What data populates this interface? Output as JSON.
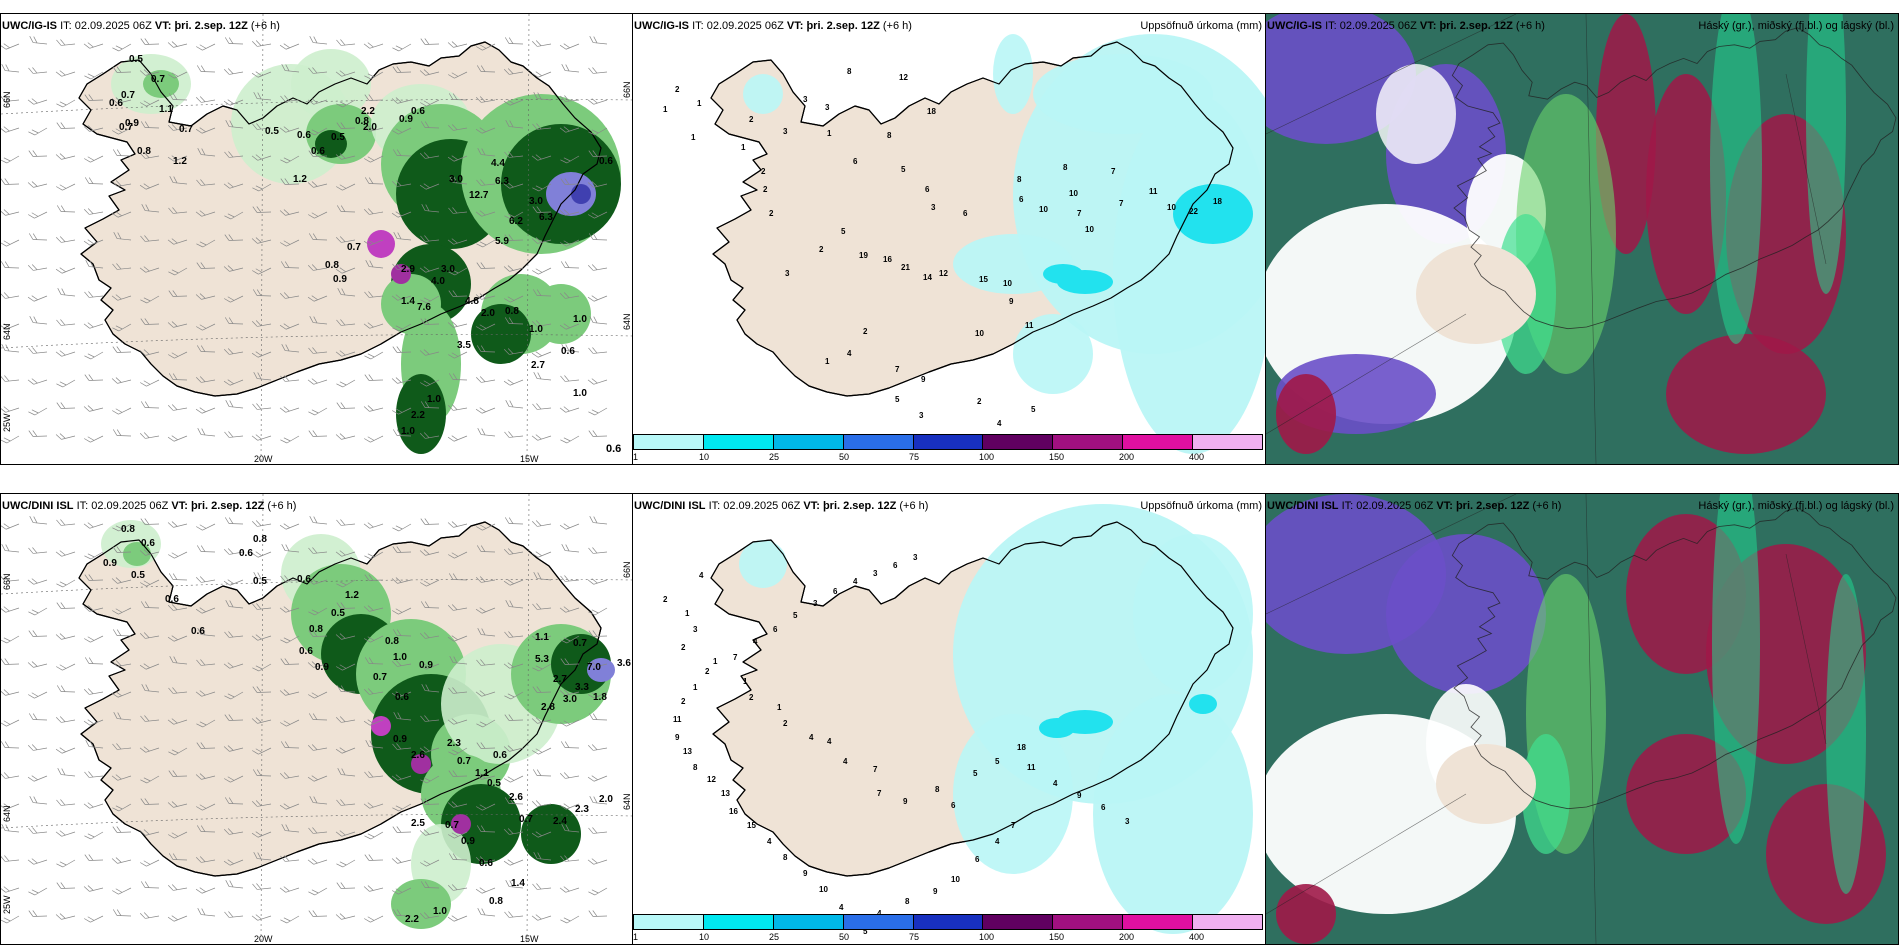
{
  "panels": [
    {
      "model": "UWC/IG-IS",
      "it_label": "IT:",
      "it_value": "02.09.2025 06Z",
      "vt_label": "VT:",
      "vt_value": "þri. 2.sep. 12Z",
      "lead": "(+6 h)",
      "title_right": "",
      "grid_labels": {
        "lat_top": "66N",
        "lat_bottom": "64N",
        "lon_left": "20W",
        "lon_right": "15W",
        "corner": "25W"
      },
      "values": [
        "0.5",
        "0.7",
        "0.6",
        "0.7",
        "0.9",
        "1.1",
        "0.7",
        "0.8",
        "0.7",
        "1.2",
        "0.5",
        "0.6",
        "0.6",
        "1.2",
        "0.5",
        "0.8",
        "2.2",
        "2.0",
        "0.9",
        "0.6",
        "4.4",
        "6.3",
        "3.0",
        "12.7",
        "3.0",
        "6.2",
        "6.3",
        "5.9",
        "3.0",
        "0.7",
        "0.8",
        "0.9",
        "2.9",
        "4.0",
        "1.4",
        "7.6",
        "4.8",
        "2.0",
        "0.8",
        "3.5",
        "1.0",
        "2.7",
        "1.0",
        "0.6",
        "1.0",
        "1.0",
        "2.2",
        "1.0",
        "0.6"
      ]
    },
    {
      "model": "UWC/IG-IS",
      "it_label": "IT:",
      "it_value": "02.09.2025 06Z",
      "vt_label": "VT:",
      "vt_value": "þri. 2.sep. 12Z",
      "lead": "(+6 h)",
      "title_right": "Uppsöfnuð úrkoma (mm)",
      "values": [
        "2",
        "1",
        "1",
        "1",
        "2",
        "1",
        "2",
        "2",
        "2",
        "3",
        "3",
        "3",
        "8",
        "12",
        "1",
        "6",
        "8",
        "18",
        "5",
        "6",
        "3",
        "6",
        "8",
        "6",
        "10",
        "10",
        "7",
        "10",
        "7",
        "8",
        "7",
        "11",
        "10",
        "22",
        "18",
        "2",
        "5",
        "3",
        "19",
        "16",
        "21",
        "14",
        "12",
        "15",
        "10",
        "9",
        "11",
        "10",
        "2",
        "1",
        "4",
        "7",
        "9",
        "5",
        "3",
        "2",
        "4",
        "5"
      ]
    },
    {
      "model": "UWC/IG-IS",
      "it_label": "IT:",
      "it_value": "02.09.2025 06Z",
      "vt_label": "VT:",
      "vt_value": "þri. 2.sep. 12Z",
      "lead": "(+6 h)",
      "title_right": "Háský (gr.), miðský (fj.bl.) og lágský (bl.)"
    },
    {
      "model": "UWC/DINI ISL",
      "it_label": "IT:",
      "it_value": "02.09.2025 06Z",
      "vt_label": "VT:",
      "vt_value": "þri. 2.sep. 12Z",
      "lead": "(+6 h)",
      "title_right": "",
      "grid_labels": {
        "lat_top": "66N",
        "lat_bottom": "64N",
        "lon_left": "20W",
        "lon_right": "15W",
        "corner": "25W"
      },
      "values": [
        "0.8",
        "0.6",
        "0.9",
        "0.5",
        "0.6",
        "0.6",
        "0.8",
        "0.6",
        "0.5",
        "0.6",
        "1.2",
        "0.5",
        "0.8",
        "0.6",
        "0.9",
        "0.8",
        "1.0",
        "0.7",
        "0.6",
        "0.9",
        "1.1",
        "0.7",
        "3.6",
        "5.3",
        "2.7",
        "7.0",
        "3.3",
        "2.8",
        "3.0",
        "1.8",
        "0.9",
        "2.6",
        "2.3",
        "0.7",
        "1.1",
        "0.6",
        "0.5",
        "2.6",
        "0.7",
        "2.4",
        "2.3",
        "2.0",
        "2.5",
        "0.7",
        "0.9",
        "0.6",
        "1.4",
        "0.8",
        "1.0",
        "2.2"
      ]
    },
    {
      "model": "UWC/DINI ISL",
      "it_label": "IT:",
      "it_value": "02.09.2025 06Z",
      "vt_label": "VT:",
      "vt_value": "þri. 2.sep. 12Z",
      "lead": "(+6 h)",
      "title_right": "Uppsöfnuð úrkoma (mm)",
      "values": [
        "4",
        "2",
        "1",
        "3",
        "2",
        "1",
        "1",
        "2",
        "1",
        "2",
        "4",
        "4",
        "4",
        "7",
        "7",
        "9",
        "8",
        "6",
        "5",
        "5",
        "18",
        "11",
        "4",
        "9",
        "6",
        "3",
        "7",
        "4",
        "6",
        "10",
        "9",
        "8",
        "4",
        "5",
        "4",
        "10",
        "9",
        "8",
        "4",
        "15",
        "16",
        "13",
        "12",
        "8",
        "13",
        "9",
        "11",
        "2",
        "1",
        "2",
        "7",
        "4",
        "6",
        "5",
        "3",
        "6",
        "4",
        "3",
        "6",
        "3"
      ]
    },
    {
      "model": "UWC/DINI ISL",
      "it_label": "IT:",
      "it_value": "02.09.2025 06Z",
      "vt_label": "VT:",
      "vt_value": "þri. 2.sep. 12Z",
      "lead": "(+6 h)",
      "title_right": "Háský (gr.), miðský (fj.bl.) og lágský (bl.)"
    }
  ],
  "colorbar": {
    "ticks": [
      "1",
      "10",
      "25",
      "50",
      "75",
      "100",
      "150",
      "200",
      "400"
    ],
    "colors": [
      "#b8f8f8",
      "#00e8f0",
      "#00b8e8",
      "#2a6ee8",
      "#1830c0",
      "#600060",
      "#a01080",
      "#e010a0",
      "#f0b0f0"
    ]
  },
  "bottom_right_value": "0.6",
  "colors": {
    "land": "#efe3d6",
    "precip_light": "#cdeecd",
    "precip_mid": "#7ccb7c",
    "precip_dark": "#0f5a1a",
    "precip_heavy": "#8080d8",
    "cyan_light": "#b9f6f6",
    "cyan": "#22e2ee",
    "cloud_high": "#2f6f5f",
    "cloud_mid": "#6a4fc8",
    "cloud_low": "#a01848"
  }
}
